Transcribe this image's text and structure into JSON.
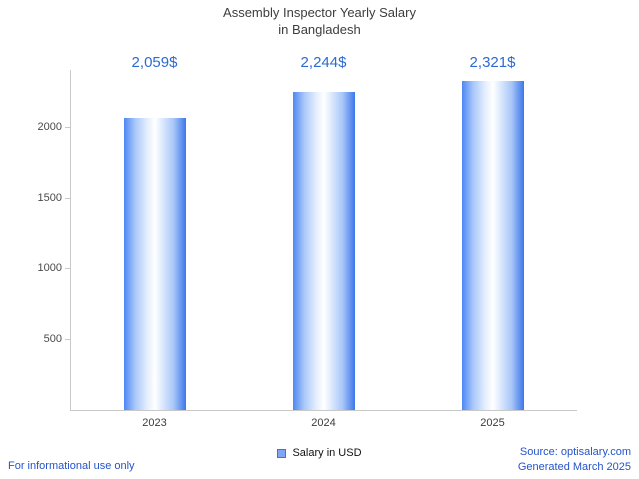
{
  "title": {
    "line1": "Assembly Inspector Yearly Salary",
    "line2": "in Bangladesh"
  },
  "chart_data": {
    "type": "bar",
    "title": "Assembly Inspector Yearly Salary in Bangladesh",
    "categories": [
      "2023",
      "2024",
      "2025"
    ],
    "values": [
      2059,
      2244,
      2321
    ],
    "value_labels": [
      "2,059$",
      "2,244$",
      "2,321$"
    ],
    "series_name": "Salary in USD",
    "xlabel": "",
    "ylabel": "",
    "ylim": [
      0,
      2400
    ],
    "yticks": [
      500,
      1000,
      1500,
      2000
    ],
    "grid": false,
    "legend_position": "bottom-center",
    "bar_gradient": [
      "#4d87f2",
      "#ffffff",
      "#3d77ea"
    ]
  },
  "legend": {
    "label": "Salary in USD",
    "swatch_color": "#7ea6f2"
  },
  "footer": {
    "left": "For informational use only",
    "source": "Source: optisalary.com",
    "generated": "Generated March 2025"
  },
  "colors": {
    "value_label": "#2b6bd3",
    "footer_link": "#2453cc",
    "axis": "#c9c9c9",
    "tick_label": "#4a4a4a",
    "title_text": "#3d3d3d"
  }
}
